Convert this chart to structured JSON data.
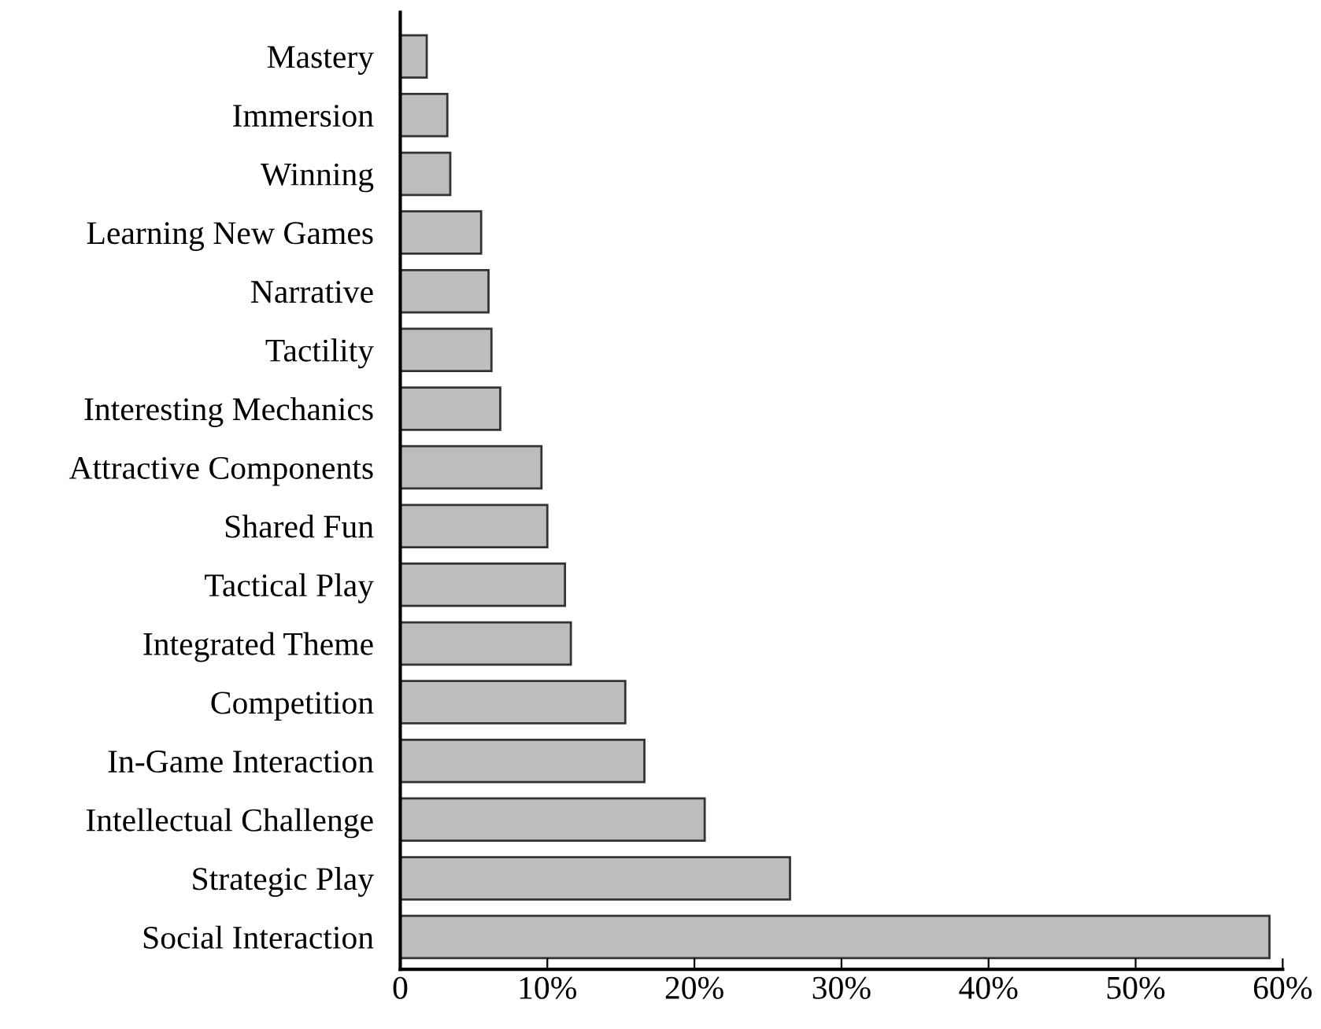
{
  "chart_data": {
    "type": "bar",
    "orientation": "horizontal",
    "categories": [
      "Mastery",
      "Immersion",
      "Winning",
      "Learning New Games",
      "Narrative",
      "Tactility",
      "Interesting Mechanics",
      "Attractive Components",
      "Shared Fun",
      "Tactical Play",
      "Integrated Theme",
      "Competition",
      "In-Game Interaction",
      "Intellectual Challenge",
      "Strategic Play",
      "Social Interaction"
    ],
    "values": [
      1.8,
      3.2,
      3.4,
      5.5,
      6.0,
      6.2,
      6.8,
      9.6,
      10.0,
      11.2,
      11.6,
      15.3,
      16.6,
      20.7,
      26.5,
      59.1
    ],
    "color": "#bdbdbd",
    "xlim": [
      0,
      60
    ],
    "xticks": [
      0,
      {
        "value": 10,
        "label": "10%"
      },
      {
        "value": 20,
        "label": "20%"
      },
      {
        "value": 30,
        "label": "30%"
      },
      {
        "value": 40,
        "label": "40%"
      },
      {
        "value": 50,
        "label": "50%"
      },
      {
        "value": 60,
        "label": "60%"
      }
    ],
    "grid": false,
    "legend": false
  }
}
